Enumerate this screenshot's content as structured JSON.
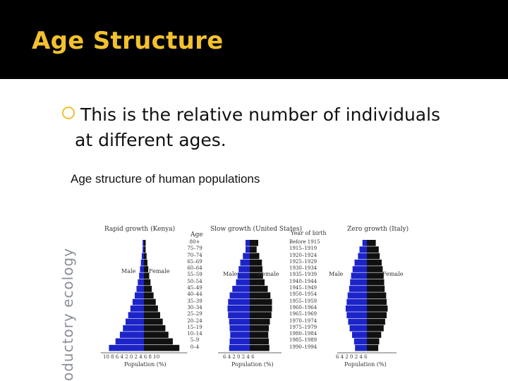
{
  "slide": {
    "title": "Age Structure",
    "bullet_line1": "This is the relative number of individuals",
    "bullet_line2": "at different ages.",
    "caption": "Age structure of human populations",
    "side_label": "oductory ecology"
  },
  "colors": {
    "accent": "#f2c12e",
    "header_bg": "#000000",
    "male_bar": "#1c24c8",
    "female_bar": "#111111"
  },
  "figure": {
    "age_header": "Age",
    "year_header": "Year of birth",
    "age_groups": [
      "80+",
      "75–79",
      "70–74",
      "65–69",
      "60–64",
      "55–59",
      "50–54",
      "45–49",
      "40–44",
      "35–39",
      "30–34",
      "25–29",
      "20–24",
      "15–19",
      "10–14",
      "5–9",
      "0–4"
    ],
    "birth_years": [
      "Before 1915",
      "1915–1919",
      "1920–1924",
      "1925–1929",
      "1930–1934",
      "1935–1939",
      "1940–1944",
      "1945–1949",
      "1950–1954",
      "1955–1959",
      "1960–1964",
      "1965–1969",
      "1970–1974",
      "1975–1979",
      "1980–1984",
      "1985–1989",
      "1990–1994"
    ],
    "pyramids": [
      {
        "title": "Rapid growth (Kenya)",
        "male_label": "Male",
        "female_label": "Female",
        "x_ticks": "10 8 6 4 2 0 2 4 6 8 10",
        "xlabel": "Population (%)",
        "male": [
          0.3,
          0.3,
          0.5,
          0.7,
          0.9,
          1.1,
          1.4,
          1.7,
          2.1,
          2.6,
          3.1,
          3.6,
          4.2,
          4.8,
          5.5,
          6.5,
          8.0
        ],
        "female": [
          0.4,
          0.4,
          0.6,
          0.8,
          1.0,
          1.2,
          1.5,
          1.8,
          2.2,
          2.7,
          3.2,
          3.7,
          4.3,
          4.9,
          5.6,
          6.6,
          8.1
        ]
      },
      {
        "title": "Slow growth (United States)",
        "male_label": "Male",
        "female_label": "Female",
        "x_ticks": "6 4 2 0 2 4 6",
        "xlabel": "Population (%)",
        "male": [
          0.8,
          0.8,
          1.3,
          1.8,
          2.1,
          2.3,
          2.6,
          3.3,
          3.8,
          4.1,
          4.2,
          4.1,
          3.9,
          3.8,
          3.7,
          3.8,
          3.9
        ],
        "female": [
          1.6,
          1.3,
          1.8,
          2.3,
          2.4,
          2.5,
          2.8,
          3.4,
          3.9,
          4.2,
          4.2,
          4.1,
          3.8,
          3.6,
          3.5,
          3.6,
          3.7
        ]
      },
      {
        "title": "Zero growth (Italy)",
        "male_label": "Male",
        "female_label": "Female",
        "x_ticks": "6 4 2 0 2 4 6",
        "xlabel": "Population (%)",
        "male": [
          0.9,
          1.5,
          1.8,
          2.5,
          2.9,
          3.2,
          3.4,
          3.6,
          3.9,
          4.1,
          4.3,
          4.1,
          3.8,
          3.5,
          3.0,
          2.6,
          2.4
        ],
        "female": [
          1.8,
          2.4,
          2.6,
          3.0,
          3.2,
          3.4,
          3.5,
          3.6,
          3.9,
          4.0,
          4.2,
          4.0,
          3.7,
          3.4,
          2.9,
          2.5,
          2.3
        ]
      }
    ]
  }
}
